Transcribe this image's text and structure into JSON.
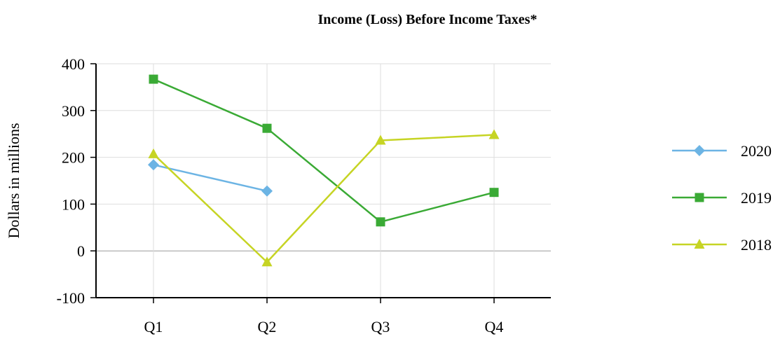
{
  "chart_data": {
    "type": "line",
    "title": "Income (Loss) Before Income Taxes*",
    "xlabel": "",
    "ylabel": "Dollars in millions",
    "categories": [
      "Q1",
      "Q2",
      "Q3",
      "Q4"
    ],
    "ylim": [
      -100,
      400
    ],
    "yticks": [
      -100,
      0,
      100,
      200,
      300,
      400
    ],
    "grid": true,
    "legend_position": "right",
    "series": [
      {
        "name": "2020",
        "color": "#6cb4e4",
        "marker": "diamond",
        "values": [
          184,
          128,
          null,
          null
        ]
      },
      {
        "name": "2019",
        "color": "#3aaa35",
        "marker": "square",
        "values": [
          367,
          262,
          62,
          125
        ]
      },
      {
        "name": "2018",
        "color": "#c6d424",
        "marker": "triangle",
        "values": [
          207,
          -24,
          236,
          248
        ]
      }
    ]
  }
}
